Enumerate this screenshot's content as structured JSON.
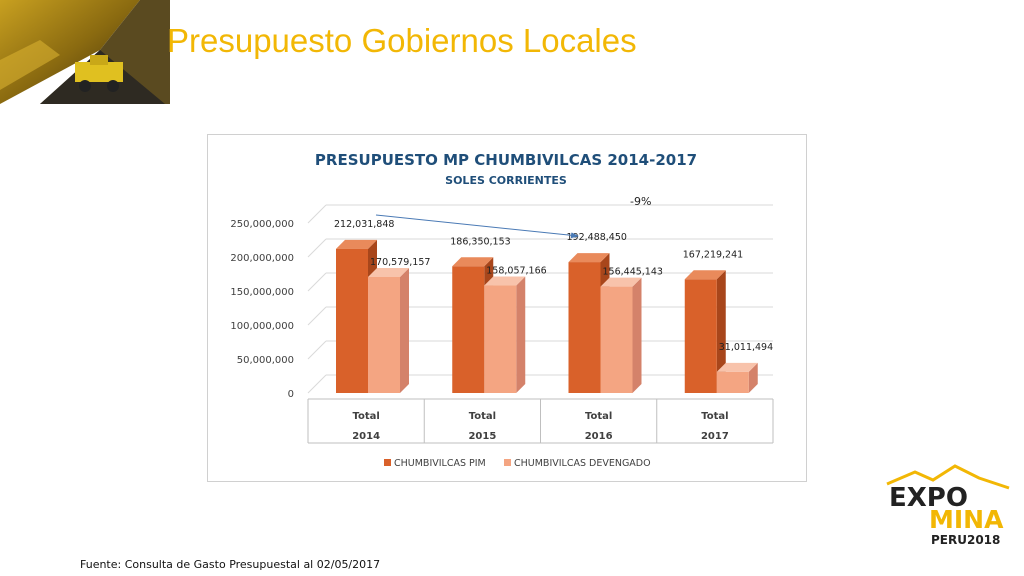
{
  "slide": {
    "title": "Presupuesto Gobiernos Locales",
    "footer": "Fuente: Consulta de Gasto Presupuestal al 02/05/2017"
  },
  "logo": {
    "line1": "EXPO",
    "line2": "MINA",
    "line3": "PERU2018"
  },
  "colors": {
    "title": "#f2b705",
    "chart_title": "#1f4e79",
    "pim": "#d9612a",
    "devengado": "#f4a582",
    "logo_yellow": "#f2b705"
  },
  "chart_data": {
    "type": "bar",
    "title": "PRESUPUESTO MP CHUMBIVILCAS 2014-2017",
    "subtitle": "SOLES CORRIENTES",
    "category_groups": [
      "Total",
      "Total",
      "Total",
      "Total"
    ],
    "categories": [
      "2014",
      "2015",
      "2016",
      "2017"
    ],
    "series": [
      {
        "name": "CHUMBIVILCAS PIM",
        "values": [
          212031848,
          186350153,
          192488450,
          167219241
        ],
        "labels": [
          "212,031,848",
          "186,350,153",
          "192,488,450",
          "167,219,241"
        ]
      },
      {
        "name": "CHUMBIVILCAS DEVENGADO",
        "values": [
          170579157,
          158057166,
          156445143,
          31011494
        ],
        "labels": [
          "170,579,157",
          "158,057,166",
          "156,445,143",
          "31,011,494"
        ]
      }
    ],
    "y_ticks": [
      "0",
      "50,000,000",
      "100,000,000",
      "150,000,000",
      "200,000,000",
      "250,000,000"
    ],
    "ylim": [
      0,
      250000000
    ],
    "annotation": "-9%",
    "grid": true,
    "legend": "bottom",
    "style": "3d-clustered-column"
  }
}
